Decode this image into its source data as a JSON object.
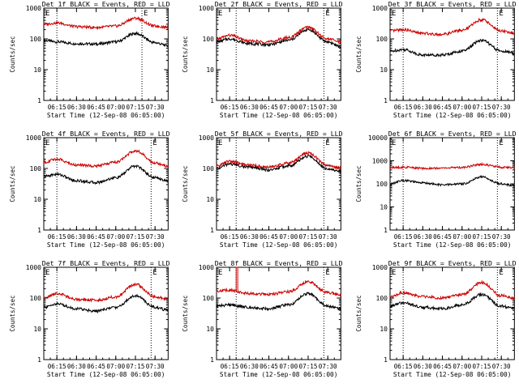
{
  "page": {
    "e_marker": "E"
  },
  "shared": {
    "xlabel": "Start Time (12-Sep-08 06:05:00)",
    "ylabel": "Counts/sec",
    "x_ticks": [
      "06:15",
      "06:30",
      "06:45",
      "07:00",
      "07:15",
      "07:30"
    ],
    "event_color": "#000000",
    "lld_color": "#cc0000"
  },
  "chart_data": [
    {
      "type": "line",
      "title": "Det 1f BLACK = Events, RED = LLD",
      "xlabel": "Start Time (12-Sep-08 06:05:00)",
      "ylabel": "Counts/sec",
      "ylog": true,
      "ylim": [
        1,
        1000
      ],
      "y_ticks": [
        1,
        10,
        100,
        1000
      ],
      "y_tick_labels": [
        "1",
        "10",
        "100",
        "1000"
      ],
      "x": [
        "06:05",
        "06:15",
        "06:30",
        "06:45",
        "07:00",
        "07:15",
        "07:30",
        "07:40"
      ],
      "series": [
        {
          "name": "Events",
          "color": "#000000",
          "values": [
            90,
            80,
            70,
            68,
            80,
            150,
            75,
            60
          ]
        },
        {
          "name": "LLD",
          "color": "#cc0000",
          "values": [
            300,
            330,
            250,
            235,
            260,
            470,
            260,
            240
          ]
        }
      ],
      "markers": [
        "06:15",
        "07:20"
      ]
    },
    {
      "type": "line",
      "title": "Det 2f BLACK = Events, RED = LLD",
      "xlabel": "Start Time (12-Sep-08 06:05:00)",
      "ylabel": "Counts/sec",
      "ylog": true,
      "ylim": [
        1,
        1000
      ],
      "y_ticks": [
        1,
        10,
        100,
        1000
      ],
      "y_tick_labels": [
        "1",
        "10",
        "100",
        "1000"
      ],
      "x": [
        "06:05",
        "06:15",
        "06:30",
        "06:45",
        "07:00",
        "07:15",
        "07:30",
        "07:40"
      ],
      "series": [
        {
          "name": "Events",
          "color": "#000000",
          "values": [
            80,
            100,
            70,
            65,
            90,
            200,
            80,
            55
          ]
        },
        {
          "name": "LLD",
          "color": "#cc0000",
          "values": [
            100,
            130,
            85,
            80,
            110,
            240,
            100,
            80
          ]
        }
      ],
      "markers": [
        "06:20",
        "07:27"
      ]
    },
    {
      "type": "line",
      "title": "Det 3f BLACK = Events, RED = LLD",
      "xlabel": "Start Time (12-Sep-08 06:05:00)",
      "ylabel": "Counts/sec",
      "ylog": true,
      "ylim": [
        1,
        1000
      ],
      "y_ticks": [
        1,
        10,
        100,
        1000
      ],
      "y_tick_labels": [
        "1",
        "10",
        "100",
        "1000"
      ],
      "x": [
        "06:05",
        "06:15",
        "06:30",
        "06:45",
        "07:00",
        "07:15",
        "07:30",
        "07:40"
      ],
      "series": [
        {
          "name": "Events",
          "color": "#000000",
          "values": [
            40,
            45,
            30,
            30,
            40,
            90,
            40,
            35
          ]
        },
        {
          "name": "LLD",
          "color": "#cc0000",
          "values": [
            180,
            200,
            150,
            140,
            190,
            420,
            180,
            150
          ]
        }
      ],
      "markers": [
        "06:15",
        "07:27"
      ]
    },
    {
      "type": "line",
      "title": "Det 4f BLACK = Events, RED = LLD",
      "xlabel": "Start Time (12-Sep-08 06:05:00)",
      "ylabel": "Counts/sec",
      "ylog": true,
      "ylim": [
        1,
        1000
      ],
      "y_ticks": [
        1,
        10,
        100,
        1000
      ],
      "y_tick_labels": [
        "1",
        "10",
        "100",
        "1000"
      ],
      "x": [
        "06:05",
        "06:15",
        "06:30",
        "06:45",
        "07:00",
        "07:15",
        "07:30",
        "07:40"
      ],
      "series": [
        {
          "name": "Events",
          "color": "#000000",
          "values": [
            55,
            65,
            40,
            35,
            50,
            120,
            50,
            40
          ]
        },
        {
          "name": "LLD",
          "color": "#cc0000",
          "values": [
            160,
            200,
            130,
            120,
            160,
            380,
            150,
            120
          ]
        }
      ],
      "markers": [
        "06:15",
        "07:27"
      ]
    },
    {
      "type": "line",
      "title": "Det 5f BLACK = Events, RED = LLD",
      "xlabel": "Start Time (12-Sep-08 06:05:00)",
      "ylabel": "Counts/sec",
      "ylog": true,
      "ylim": [
        1,
        1000
      ],
      "y_ticks": [
        1,
        10,
        100,
        1000
      ],
      "y_tick_labels": [
        "1",
        "10",
        "100",
        "1000"
      ],
      "x": [
        "06:05",
        "06:15",
        "06:30",
        "06:45",
        "07:00",
        "07:15",
        "07:30",
        "07:40"
      ],
      "series": [
        {
          "name": "Events",
          "color": "#000000",
          "values": [
            100,
            140,
            110,
            90,
            120,
            250,
            100,
            80
          ]
        },
        {
          "name": "LLD",
          "color": "#cc0000",
          "values": [
            120,
            170,
            130,
            110,
            150,
            320,
            125,
            105
          ]
        }
      ],
      "markers": [
        "06:20",
        "07:27"
      ]
    },
    {
      "type": "line",
      "title": "Det 6f BLACK = Events, RED = LLD",
      "xlabel": "Start Time (12-Sep-08 06:05:00)",
      "ylabel": "Counts/sec",
      "ylog": true,
      "ylim": [
        1,
        10000
      ],
      "y_ticks": [
        1,
        10,
        100,
        1000,
        10000
      ],
      "y_tick_labels": [
        "1",
        "10",
        "100",
        "1000",
        "10000"
      ],
      "x": [
        "06:05",
        "06:15",
        "06:30",
        "06:45",
        "07:00",
        "07:15",
        "07:30",
        "07:40"
      ],
      "series": [
        {
          "name": "Events",
          "color": "#000000",
          "values": [
            100,
            140,
            110,
            90,
            100,
            200,
            100,
            85
          ]
        },
        {
          "name": "LLD",
          "color": "#cc0000",
          "values": [
            500,
            520,
            470,
            480,
            520,
            700,
            520,
            500
          ]
        }
      ],
      "markers": [
        "06:15",
        "07:27"
      ]
    },
    {
      "type": "line",
      "title": "Det 7f BLACK = Events, RED = LLD",
      "xlabel": "Start Time (12-Sep-08 06:05:00)",
      "ylabel": "Counts/sec",
      "ylog": true,
      "ylim": [
        1,
        1000
      ],
      "y_ticks": [
        1,
        10,
        100,
        1000
      ],
      "y_tick_labels": [
        "1",
        "10",
        "100",
        "1000"
      ],
      "x": [
        "06:05",
        "06:15",
        "06:30",
        "06:45",
        "07:00",
        "07:15",
        "07:30",
        "07:40"
      ],
      "series": [
        {
          "name": "Events",
          "color": "#000000",
          "values": [
            50,
            65,
            45,
            38,
            50,
            120,
            50,
            40
          ]
        },
        {
          "name": "LLD",
          "color": "#cc0000",
          "values": [
            100,
            140,
            90,
            85,
            110,
            280,
            110,
            90
          ]
        }
      ],
      "markers": [
        "06:15",
        "07:27"
      ]
    },
    {
      "type": "line",
      "title": "Det 8f BLACK = Events, RED = LLD",
      "xlabel": "Start Time (12-Sep-08 06:05:00)",
      "ylabel": "Counts/sec",
      "ylog": true,
      "ylim": [
        1,
        1000
      ],
      "y_ticks": [
        1,
        10,
        100,
        1000
      ],
      "y_tick_labels": [
        "1",
        "10",
        "100",
        "1000"
      ],
      "x": [
        "06:05",
        "06:15",
        "06:30",
        "06:45",
        "07:00",
        "07:15",
        "07:30",
        "07:40"
      ],
      "series": [
        {
          "name": "Events",
          "color": "#000000",
          "values": [
            55,
            60,
            50,
            45,
            60,
            140,
            55,
            45
          ]
        },
        {
          "name": "LLD",
          "color": "#cc0000",
          "values": [
            170,
            180,
            140,
            130,
            160,
            340,
            150,
            130
          ]
        }
      ],
      "spike": {
        "series": "LLD",
        "x": "06:20",
        "value": 1000
      },
      "markers": [
        "06:20",
        "07:27"
      ]
    },
    {
      "type": "line",
      "title": "Det 9f BLACK = Events, RED = LLD",
      "xlabel": "Start Time (12-Sep-08 06:05:00)",
      "ylabel": "Counts/sec",
      "ylog": true,
      "ylim": [
        1,
        1000
      ],
      "y_ticks": [
        1,
        10,
        100,
        1000
      ],
      "y_tick_labels": [
        "1",
        "10",
        "100",
        "1000"
      ],
      "x": [
        "06:05",
        "06:15",
        "06:30",
        "06:45",
        "07:00",
        "07:15",
        "07:30",
        "07:40"
      ],
      "series": [
        {
          "name": "Events",
          "color": "#000000",
          "values": [
            55,
            70,
            50,
            45,
            60,
            130,
            55,
            45
          ]
        },
        {
          "name": "LLD",
          "color": "#cc0000",
          "values": [
            110,
            150,
            110,
            100,
            130,
            320,
            120,
            100
          ]
        }
      ],
      "markers": [
        "06:15",
        "07:27"
      ]
    }
  ]
}
